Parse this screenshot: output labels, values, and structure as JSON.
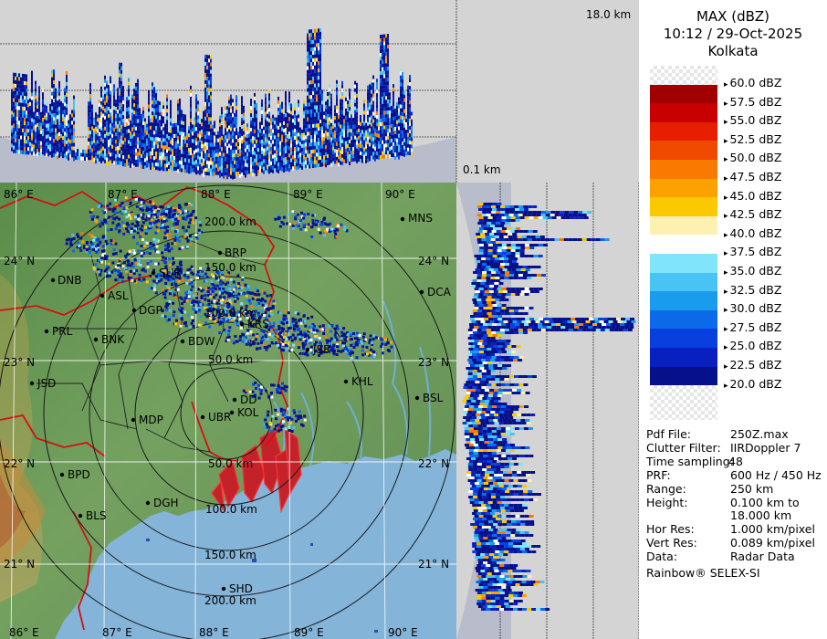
{
  "header": {
    "title": "MAX (dBZ)",
    "datetime": "10:12 / 29-Oct-2025",
    "site": "Kolkata"
  },
  "profile_labels": {
    "top_height": "18.0 km",
    "bottom_height": "0.1 km"
  },
  "scale": {
    "unit": "dBZ",
    "entries": [
      {
        "label": "60.0 dBZ",
        "color": "#f2f2f2"
      },
      {
        "label": "57.5 dBZ",
        "color": "#a00000"
      },
      {
        "label": "55.0 dBZ",
        "color": "#c80000"
      },
      {
        "label": "52.5 dBZ",
        "color": "#e81e00"
      },
      {
        "label": "50.0 dBZ",
        "color": "#f04a00"
      },
      {
        "label": "47.5 dBZ",
        "color": "#f87a00"
      },
      {
        "label": "45.0 dBZ",
        "color": "#fca200"
      },
      {
        "label": "42.5 dBZ",
        "color": "#fcc800"
      },
      {
        "label": "40.0 dBZ",
        "color": "#fef0b0"
      },
      {
        "label": "37.5 dBZ",
        "color": "#ffffff"
      },
      {
        "label": "35.0 dBZ",
        "color": "#80e4fa"
      },
      {
        "label": "32.5 dBZ",
        "color": "#48c4f4"
      },
      {
        "label": "30.0 dBZ",
        "color": "#1a9cee"
      },
      {
        "label": "27.5 dBZ",
        "color": "#0a6ae8"
      },
      {
        "label": "25.0 dBZ",
        "color": "#0840e0"
      },
      {
        "label": "22.5 dBZ",
        "color": "#0820c0"
      },
      {
        "label": "20.0 dBZ",
        "color": "#06108a"
      }
    ]
  },
  "info": [
    {
      "key": "Pdf File:",
      "value": "250Z.max"
    },
    {
      "key": "Clutter Filter:",
      "value": "IIRDoppler 7"
    },
    {
      "key": "Time sampling:",
      "value": "48"
    },
    {
      "key": "PRF:",
      "value": "600 Hz / 450 Hz"
    },
    {
      "key": "Range:",
      "value": "250 km"
    },
    {
      "key": "Height:",
      "value": "0.100 km to"
    },
    {
      "key": "",
      "value": "18.000 km"
    },
    {
      "key": "Hor Res:",
      "value": "1.000 km/pixel"
    },
    {
      "key": "Vert Res:",
      "value": "0.089 km/pixel"
    },
    {
      "key": "Data:",
      "value": "Radar Data"
    }
  ],
  "footer": "Rainbow® SELEX-SI",
  "map": {
    "lon_labels": [
      "86° E",
      "87° E",
      "88° E",
      "89° E",
      "90° E"
    ],
    "lat_labels": [
      "24° N",
      "23° N",
      "22° N",
      "21° N"
    ],
    "range_rings": [
      "50.0 km",
      "100.0 km",
      "150.0 km",
      "200.0 km"
    ],
    "cities": [
      "MNS",
      "BRP",
      "SUR",
      "DNB",
      "ASL",
      "DGP",
      "DCA",
      "KRS",
      "PRL",
      "BNK",
      "BDW",
      "JSR",
      "KHL",
      "BSL",
      "JSD",
      "DD",
      "KOL",
      "UBR",
      "MDP",
      "BPD",
      "DGH",
      "BLS",
      "SHD"
    ]
  },
  "colors": {
    "sea": "#83b3d8",
    "land": "#69905a",
    "panel": "#d4d4d4",
    "border_red": "#dd1010"
  }
}
